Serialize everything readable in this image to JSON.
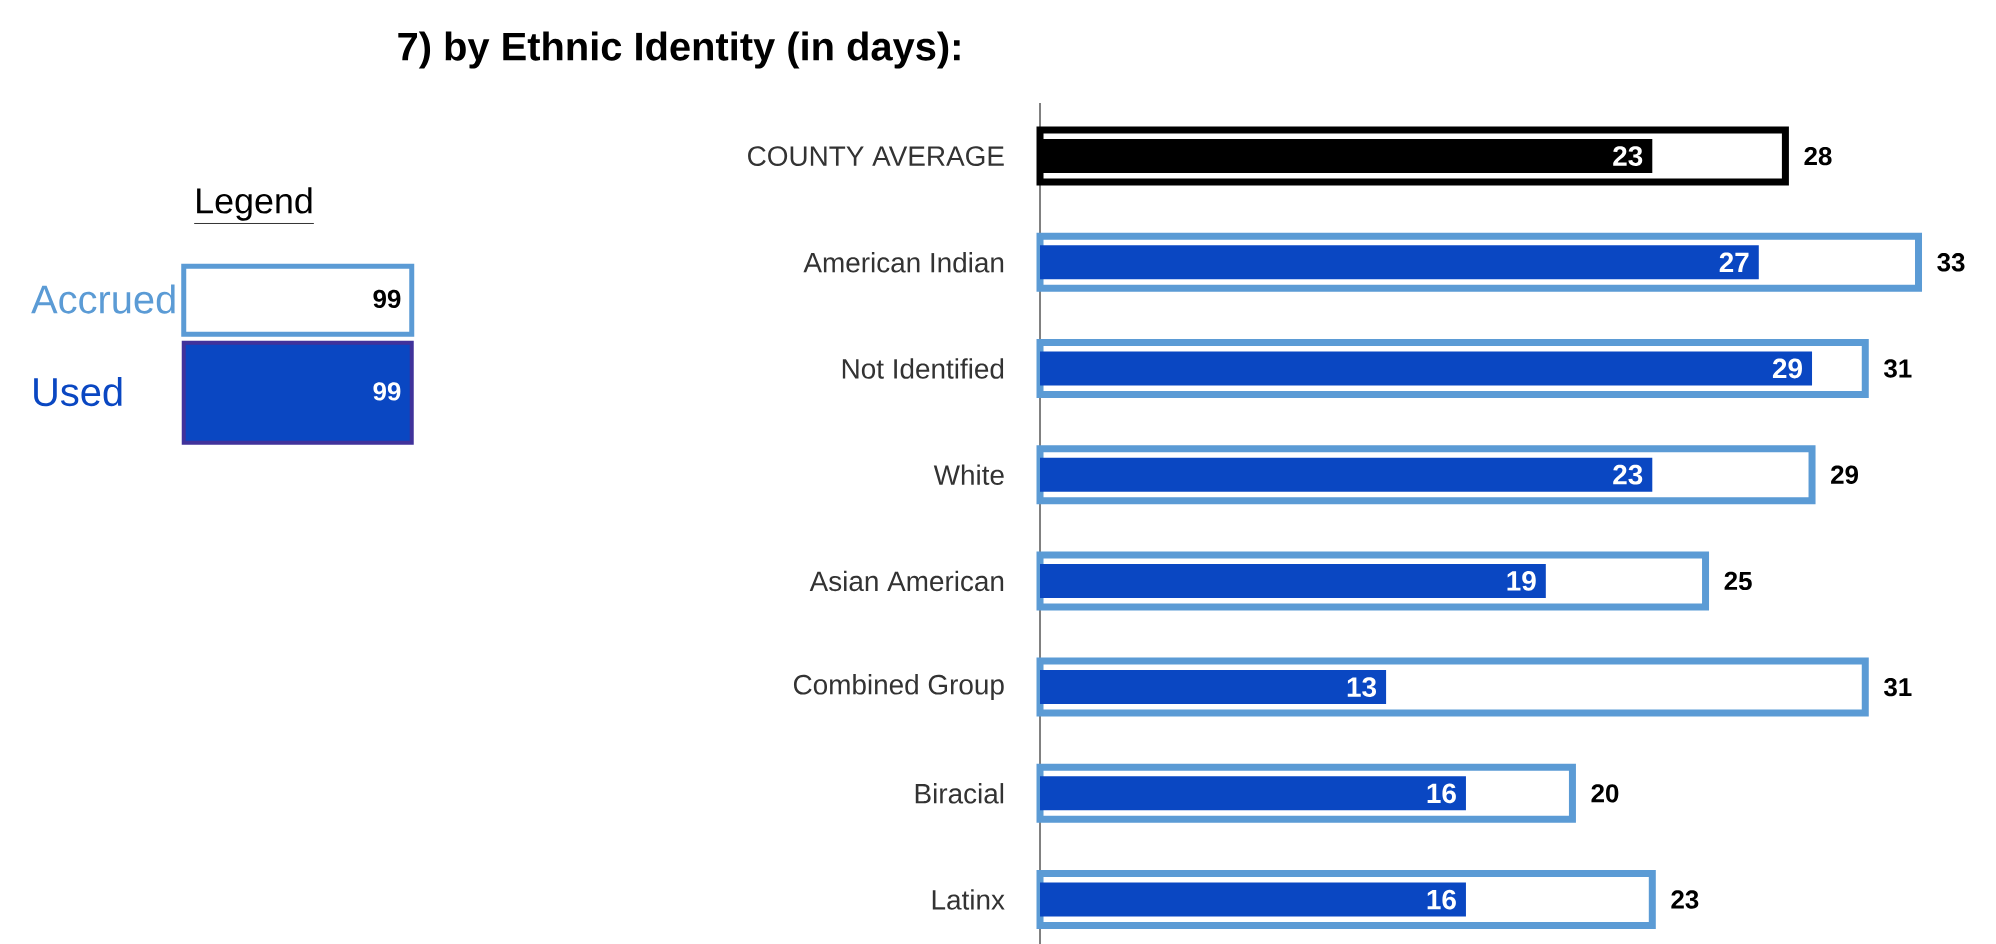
{
  "chart_data": {
    "type": "bar",
    "orientation": "horizontal",
    "title": "7)  by Ethnic Identity (in days):",
    "legend_title": "Legend",
    "legend": "left",
    "data_labels": true,
    "categories": [
      "COUNTY AVERAGE",
      "American Indian",
      "Not Identified",
      "White",
      "Asian American",
      "Combined Group",
      "Biracial",
      "Latinx"
    ],
    "series": [
      {
        "name": "Accrued",
        "color": "#5b9bd5",
        "colors": [
          "#000000",
          "#5b9bd5",
          "#5b9bd5",
          "#5b9bd5",
          "#5b9bd5",
          "#5b9bd5",
          "#5b9bd5",
          "#5b9bd5"
        ],
        "values": [
          28,
          33,
          31,
          29,
          25,
          31,
          20,
          23
        ]
      },
      {
        "name": "Used",
        "color": "#0a47c2",
        "colors": [
          "#000000",
          "#0a47c2",
          "#0a47c2",
          "#0a47c2",
          "#0a47c2",
          "#0a47c2",
          "#0a47c2",
          "#0a47c2"
        ],
        "values": [
          23,
          27,
          29,
          23,
          19,
          13,
          16,
          16
        ]
      }
    ],
    "annotations": [
      "99",
      "99"
    ]
  }
}
